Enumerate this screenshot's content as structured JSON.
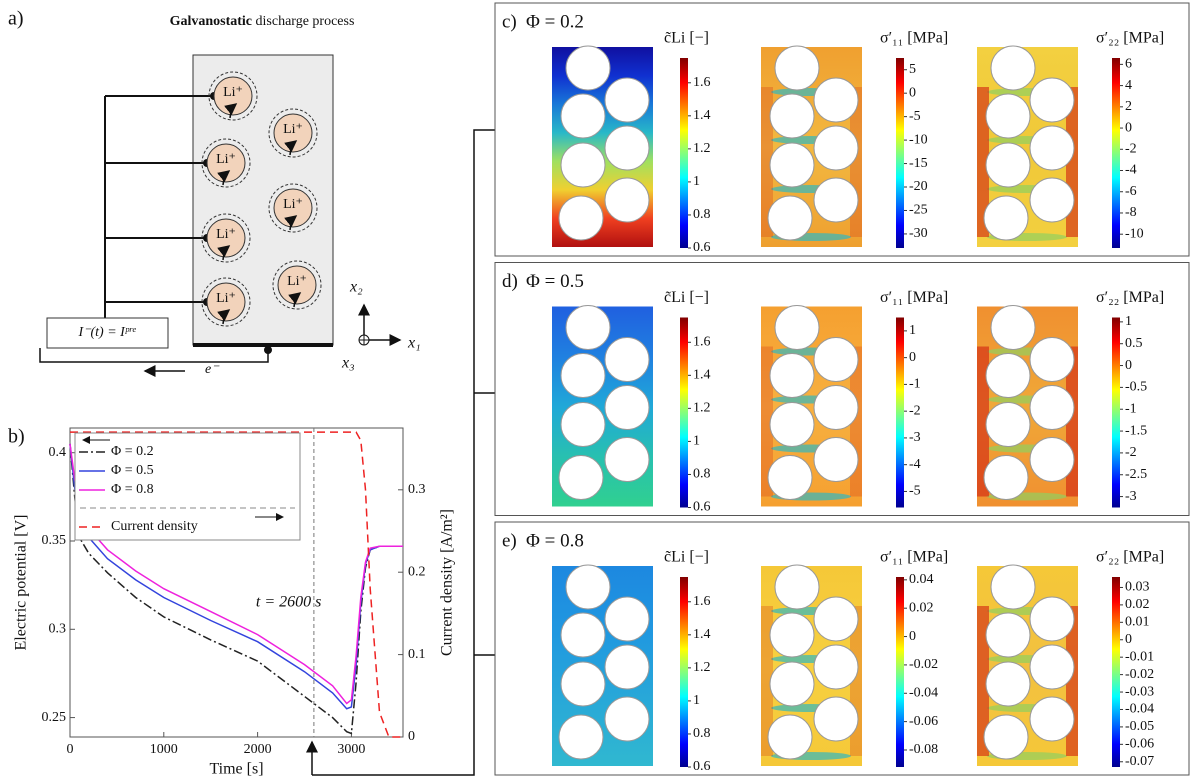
{
  "panel_a": {
    "label": "a)",
    "title_bold": "Galvanostatic",
    "title_rest": " discharge process",
    "particles": [
      "Li⁺",
      "Li⁺",
      "Li⁺",
      "Li⁺",
      "Li⁺",
      "Li⁺",
      "Li⁺"
    ],
    "current_label": "I⁻(t) = Iᵖʳᵉ",
    "electron_label": "e⁻",
    "axis_labels": [
      "x₁",
      "x₂",
      "x₃"
    ]
  },
  "chart_data": {
    "type": "line",
    "panel_label": "b)",
    "xlabel": "Time [s]",
    "ylabel": "Electric potential [V]",
    "y2label": "Current density [A/m²]",
    "x": [
      0,
      50,
      100,
      200,
      400,
      700,
      1000,
      1500,
      2000,
      2500,
      2800,
      2950,
      3000,
      3050,
      3100,
      3150,
      3200,
      3300,
      3400,
      3550
    ],
    "series": [
      {
        "name": "Φ = 0.2",
        "color": "#222222",
        "dash": "dash-dot",
        "values": [
          0.405,
          0.375,
          0.352,
          0.343,
          0.332,
          0.318,
          0.307,
          0.294,
          0.282,
          0.262,
          0.25,
          0.242,
          0.241,
          0.27,
          0.31,
          0.335,
          0.345,
          0.347,
          0.347,
          0.347
        ]
      },
      {
        "name": "Φ = 0.5",
        "color": "#3344dd",
        "dash": "solid",
        "values": [
          0.405,
          0.38,
          0.365,
          0.352,
          0.34,
          0.328,
          0.318,
          0.305,
          0.293,
          0.276,
          0.264,
          0.255,
          0.256,
          0.28,
          0.315,
          0.337,
          0.345,
          0.347,
          0.347,
          0.347
        ]
      },
      {
        "name": "Φ = 0.8",
        "color": "#ee22dd",
        "dash": "solid",
        "values": [
          0.405,
          0.385,
          0.37,
          0.357,
          0.345,
          0.333,
          0.323,
          0.31,
          0.297,
          0.28,
          0.268,
          0.258,
          0.26,
          0.285,
          0.318,
          0.338,
          0.346,
          0.347,
          0.347,
          0.347
        ]
      },
      {
        "name": "Current density",
        "color": "#ee2222",
        "dash": "dashed",
        "axis": "y2",
        "values": [
          0.37,
          0.37,
          0.37,
          0.37,
          0.37,
          0.37,
          0.37,
          0.37,
          0.37,
          0.37,
          0.37,
          0.37,
          0.37,
          0.37,
          0.36,
          0.3,
          0.18,
          0.03,
          0,
          0
        ]
      }
    ],
    "xlim": [
      0,
      3550
    ],
    "xticks": [
      0,
      1000,
      2000,
      3000
    ],
    "ylim": [
      0.239,
      0.414
    ],
    "yticks": [
      0.25,
      0.3,
      0.35,
      0.4
    ],
    "y2lim": [
      0,
      0.375
    ],
    "y2ticks": [
      0,
      0.1,
      0.2,
      0.3
    ],
    "legend": "upper-left",
    "annotations": [
      {
        "text": "t = 2600 s",
        "x": 2600
      }
    ]
  },
  "field_panels": [
    {
      "label": "c)",
      "phi": "Φ = 0.2",
      "plots": [
        {
          "title": "c̃Li [−]",
          "lim": [
            0.6,
            1.75
          ],
          "ticks": [
            0.6,
            0.8,
            1,
            1.2,
            1.4,
            1.6
          ]
        },
        {
          "title": "σ′₁₁ [MPa]",
          "lim": [
            -33,
            7.5
          ],
          "ticks": [
            -30,
            -25,
            -20,
            -15,
            -10,
            -5,
            0,
            5
          ]
        },
        {
          "title": "σ′₂₂ [MPa]",
          "lim": [
            -11.3,
            6.6
          ],
          "ticks": [
            -10,
            -8,
            -6,
            -4,
            -2,
            0,
            2,
            4,
            6
          ]
        }
      ]
    },
    {
      "label": "d)",
      "phi": "Φ = 0.5",
      "plots": [
        {
          "title": "c̃Li [−]",
          "lim": [
            0.6,
            1.75
          ],
          "ticks": [
            0.6,
            0.8,
            1,
            1.2,
            1.4,
            1.6
          ]
        },
        {
          "title": "σ′₁₁ [MPa]",
          "lim": [
            -5.6,
            1.5
          ],
          "ticks": [
            -5,
            -4,
            -3,
            -2,
            -1,
            0,
            1
          ]
        },
        {
          "title": "σ′₂₂ [MPa]",
          "lim": [
            -3.25,
            1.1
          ],
          "ticks": [
            -3,
            -2.5,
            -2,
            -1.5,
            -1,
            -0.5,
            0,
            0.5,
            1
          ]
        }
      ]
    },
    {
      "label": "e)",
      "phi": "Φ = 0.8",
      "plots": [
        {
          "title": "c̃Li [−]",
          "lim": [
            0.6,
            1.75
          ],
          "ticks": [
            0.6,
            0.8,
            1,
            1.2,
            1.4,
            1.6
          ]
        },
        {
          "title": "σ′₁₁ [MPa]",
          "lim": [
            -0.092,
            0.042
          ],
          "ticks": [
            -0.08,
            -0.06,
            -0.04,
            -0.02,
            0,
            0.02,
            0.04
          ]
        },
        {
          "title": "σ′₂₂ [MPa]",
          "lim": [
            -0.073,
            0.036
          ],
          "ticks": [
            -0.07,
            -0.06,
            -0.05,
            -0.04,
            -0.03,
            -0.02,
            -0.01,
            0,
            0.01,
            0.02,
            0.03
          ]
        }
      ]
    }
  ]
}
